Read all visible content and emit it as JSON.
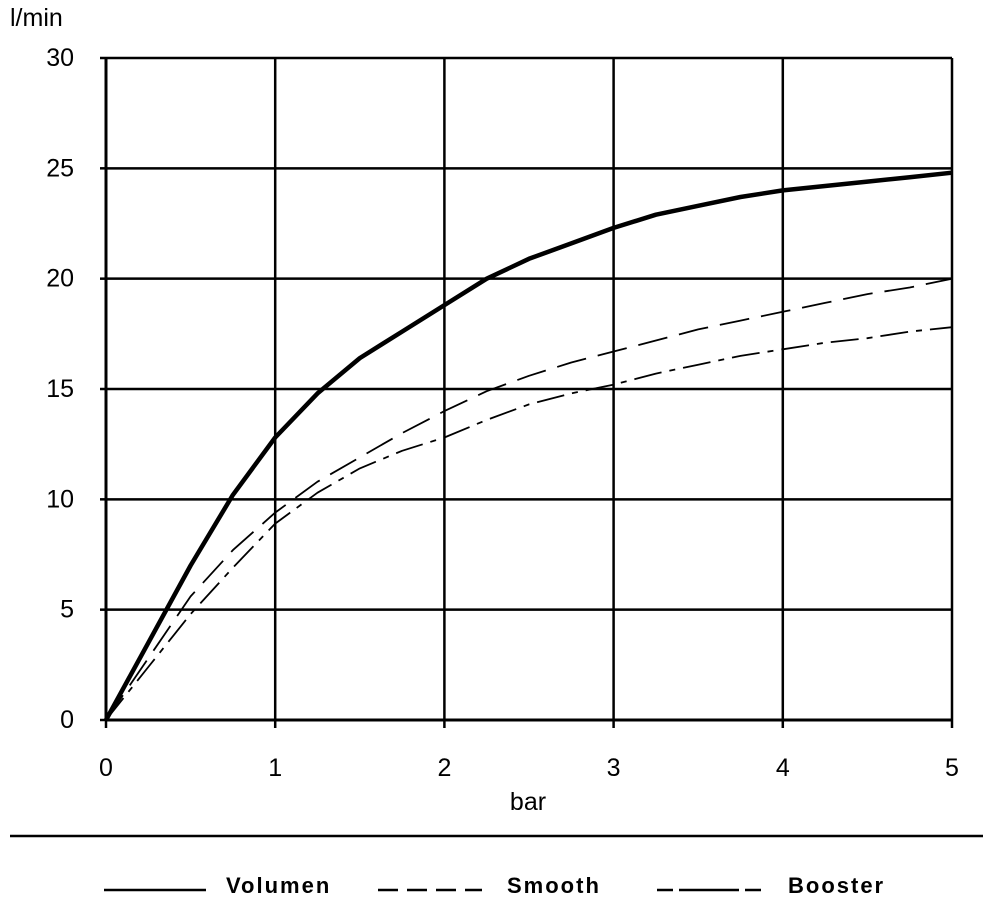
{
  "chart_data": {
    "type": "line",
    "xlabel": "bar",
    "ylabel": "l/min",
    "xlim": [
      0,
      5
    ],
    "ylim": [
      0,
      30
    ],
    "x_ticks": [
      0,
      1,
      2,
      3,
      4,
      5
    ],
    "y_ticks": [
      0,
      5,
      10,
      15,
      20,
      25,
      30
    ],
    "grid": true,
    "legend_position": "bottom",
    "series": [
      {
        "name": "Volumen",
        "style": "solid-thick",
        "x": [
          0,
          0.25,
          0.5,
          0.75,
          1.0,
          1.25,
          1.5,
          1.75,
          2.0,
          2.25,
          2.5,
          2.75,
          3.0,
          3.25,
          3.5,
          3.75,
          4.0,
          4.25,
          4.5,
          4.75,
          5.0
        ],
        "values": [
          0,
          3.5,
          7.0,
          10.2,
          12.8,
          14.8,
          16.4,
          17.6,
          18.8,
          20.0,
          20.9,
          21.6,
          22.3,
          22.9,
          23.3,
          23.7,
          24.0,
          24.2,
          24.4,
          24.6,
          24.8
        ]
      },
      {
        "name": "Smooth",
        "style": "dashed",
        "x": [
          0,
          0.25,
          0.5,
          0.75,
          1.0,
          1.25,
          1.5,
          1.75,
          2.0,
          2.25,
          2.5,
          2.75,
          3.0,
          3.25,
          3.5,
          3.75,
          4.0,
          4.25,
          4.5,
          4.75,
          5.0
        ],
        "values": [
          0,
          2.8,
          5.6,
          7.7,
          9.4,
          10.8,
          11.9,
          13.0,
          14.0,
          14.9,
          15.6,
          16.2,
          16.7,
          17.2,
          17.7,
          18.1,
          18.5,
          18.9,
          19.3,
          19.6,
          20.0
        ]
      },
      {
        "name": "Booster",
        "style": "dash-dot",
        "x": [
          0,
          0.25,
          0.5,
          0.75,
          1.0,
          1.25,
          1.5,
          1.75,
          2.0,
          2.25,
          2.5,
          2.75,
          3.0,
          3.25,
          3.5,
          3.75,
          4.0,
          4.25,
          4.5,
          4.75,
          5.0
        ],
        "values": [
          0,
          2.4,
          4.8,
          6.9,
          8.9,
          10.3,
          11.4,
          12.2,
          12.8,
          13.6,
          14.3,
          14.8,
          15.2,
          15.7,
          16.1,
          16.5,
          16.8,
          17.1,
          17.3,
          17.6,
          17.8
        ]
      }
    ]
  },
  "colors": {
    "background": "#ffffff",
    "line": "#000000"
  }
}
